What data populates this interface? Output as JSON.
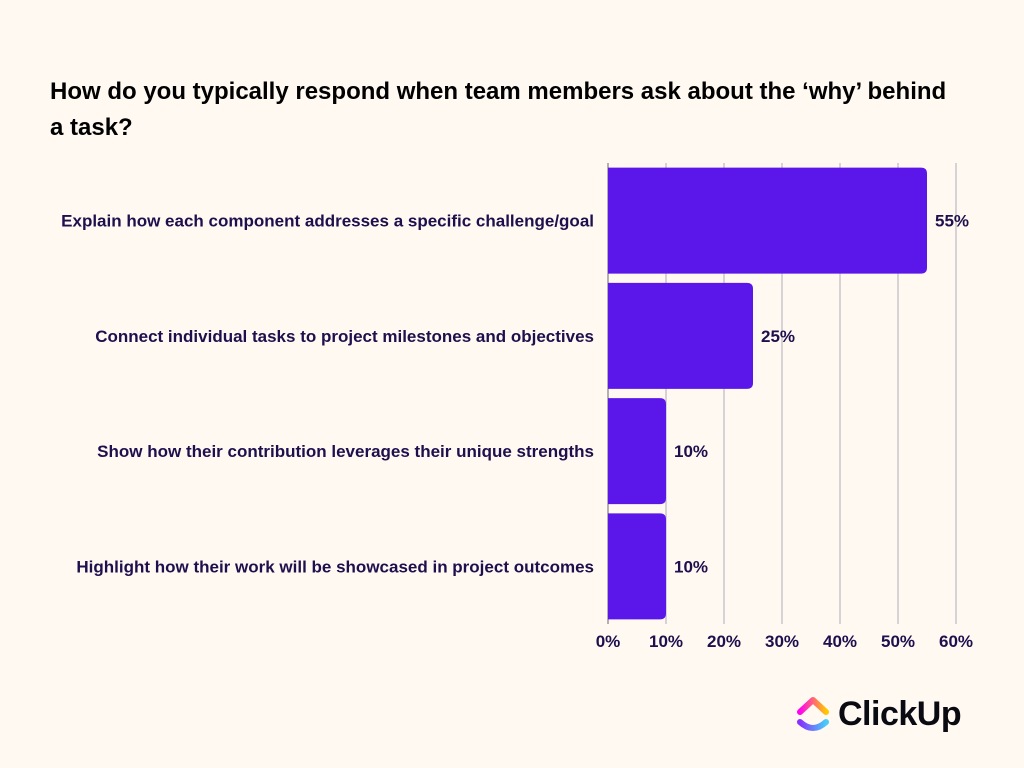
{
  "chart_data": {
    "type": "bar",
    "orientation": "horizontal",
    "title": "How do you typically respond when team members ask about the ‘why’ behind a task?",
    "categories": [
      "Explain how each component addresses a specific challenge/goal",
      "Connect individual tasks to project milestones and objectives",
      "Show how their contribution leverages their unique strengths",
      "Highlight how their work will be showcased in project outcomes"
    ],
    "values": [
      55,
      25,
      10,
      10
    ],
    "value_labels": [
      "55%",
      "25%",
      "10%",
      "10%"
    ],
    "xlim": [
      0,
      60
    ],
    "x_ticks": [
      0,
      10,
      20,
      30,
      40,
      50,
      60
    ],
    "x_tick_labels": [
      "0%",
      "10%",
      "20%",
      "30%",
      "40%",
      "50%",
      "60%"
    ],
    "grid": "vertical",
    "legend": "none",
    "xlabel": "",
    "ylabel": ""
  },
  "colors": {
    "background": "#fff9f2",
    "bar": "#5b17ea",
    "label_text": "#1e0f4d",
    "grid": "#c9c6cc"
  },
  "brand": {
    "name": "ClickUp",
    "icon": "clickup-logo-icon"
  }
}
